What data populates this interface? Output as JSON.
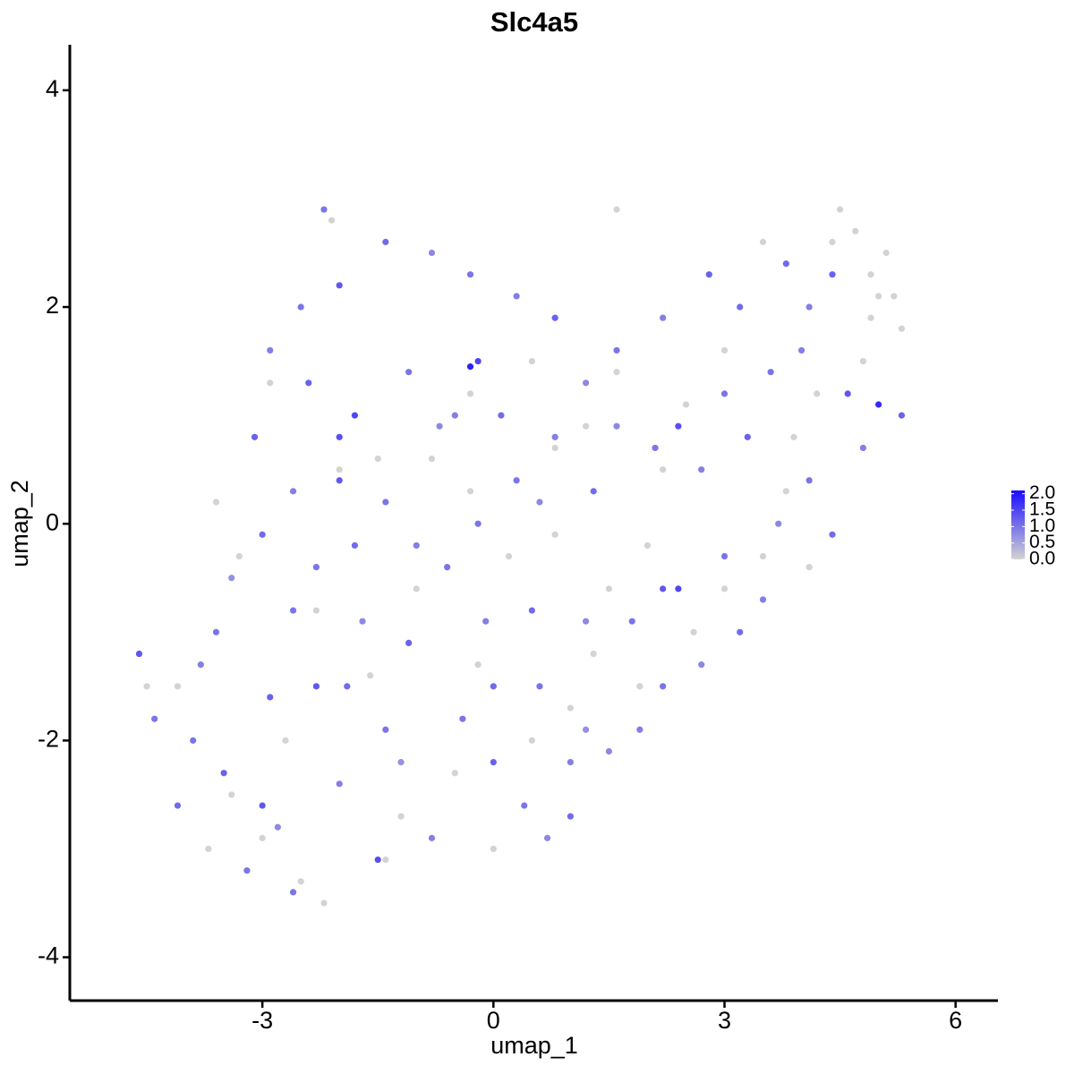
{
  "chart_data": {
    "type": "scatter",
    "title": "Slc4a5",
    "x_label": "umap_1",
    "y_label": "umap_2",
    "xlim": [
      -5.5,
      6.55
    ],
    "ylim": [
      -4.4,
      4.42
    ],
    "xticks": [
      -3,
      0,
      3,
      6
    ],
    "yticks": [
      -4,
      -2,
      0,
      2,
      4
    ],
    "color_low": "#d3d3d3",
    "color_high": "#1a0dff",
    "color_lim": [
      0,
      2.1
    ],
    "color_ticks": [
      {
        "value": 0,
        "label": "0.0"
      },
      {
        "value": 0.5,
        "label": "0.5"
      },
      {
        "value": 1,
        "label": "1.0"
      },
      {
        "value": 1.5,
        "label": "1.5"
      },
      {
        "value": 2,
        "label": "2.0"
      }
    ],
    "x": [
      -4.6,
      -4.5,
      -3.7,
      -3.0,
      -2.5,
      -2.2,
      -1.4,
      -1.2,
      -0.5,
      0.0,
      0.5,
      1.0,
      1.3,
      1.5,
      2.0,
      2.6,
      3.0,
      3.5,
      3.8,
      4.1,
      4.5,
      4.4,
      4.7,
      4.9,
      5.1,
      5.2,
      4.9,
      5.3,
      4.8,
      5.0,
      3.5,
      3.0,
      2.5,
      1.6,
      1.2,
      0.8,
      0.5,
      -0.3,
      -0.8,
      -1.5,
      -2.0,
      -2.9,
      -3.3,
      -2.3,
      -1.6,
      -1.0,
      -0.3,
      0.2,
      0.8,
      1.6,
      -2.1,
      -0.2,
      -2.7,
      -3.4,
      4.2,
      3.9,
      2.2,
      1.9,
      -4.1,
      -3.6,
      -4.6,
      -4.4,
      -4.1,
      -3.8,
      -3.5,
      -3.2,
      -2.8,
      -2.6,
      -2.3,
      -2.0,
      -1.9,
      -1.5,
      -1.2,
      -0.8,
      -0.4,
      0.0,
      0.4,
      0.7,
      1.0,
      1.0,
      0.6,
      1.2,
      1.5,
      1.9,
      2.2,
      2.7,
      3.2,
      3.5,
      3.0,
      2.2,
      1.8,
      1.2,
      0.5,
      -0.1,
      -0.6,
      -1.1,
      -1.7,
      -2.3,
      -3.0,
      -3.4,
      -3.6,
      -3.1,
      -2.6,
      -2.0,
      -1.4,
      -0.7,
      -0.2,
      0.3,
      0.8,
      1.3,
      1.6,
      2.1,
      2.4,
      2.7,
      3.0,
      3.3,
      3.7,
      4.1,
      4.4,
      4.8,
      5.0,
      5.3,
      4.6,
      4.0,
      3.6,
      3.2,
      2.8,
      2.2,
      1.6,
      1.2,
      0.8,
      0.3,
      -0.3,
      -0.8,
      -1.4,
      -2.0,
      -2.5,
      -2.9,
      -2.4,
      -1.8,
      -1.1,
      -0.5,
      0.1,
      0.6,
      -0.2,
      -1.0,
      -1.8,
      -2.6,
      -2.9,
      -3.9,
      -0.3,
      -2.2,
      -3.0,
      -1.4,
      4.4,
      4.1,
      3.8,
      -2.0,
      0.0,
      2.4
    ],
    "series": [
      {
        "values": [
          -1.2,
          -1.5,
          -3.0,
          -2.9,
          -3.3,
          -3.5,
          -3.1,
          -2.7,
          -2.3,
          -3.0,
          -2.0,
          -1.7,
          -1.2,
          -0.6,
          -0.2,
          -1.0,
          -0.6,
          -0.3,
          0.3,
          -0.4,
          2.9,
          2.6,
          2.7,
          2.3,
          2.5,
          2.1,
          1.9,
          1.8,
          1.5,
          2.1,
          2.6,
          1.6,
          1.1,
          1.4,
          0.9,
          0.7,
          1.5,
          1.2,
          0.6,
          0.6,
          0.5,
          1.3,
          -0.3,
          -0.8,
          -1.4,
          -0.6,
          0.3,
          -0.3,
          -0.1,
          2.9,
          2.8,
          -1.3,
          -2.0,
          -2.5,
          1.2,
          0.8,
          0.5,
          -1.5,
          -1.5,
          0.2,
          -1.2,
          -1.8,
          -2.6,
          -1.3,
          -2.3,
          -3.2,
          -2.8,
          -3.4,
          -1.5,
          -2.4,
          -1.5,
          -3.1,
          -2.2,
          -2.9,
          -1.8,
          -2.2,
          -2.6,
          -2.9,
          -2.7,
          -2.2,
          -1.5,
          -1.9,
          -2.1,
          -1.9,
          -1.5,
          -1.3,
          -1.0,
          -0.7,
          -0.3,
          -0.6,
          -0.9,
          -0.9,
          -0.8,
          -0.9,
          -0.4,
          -1.1,
          -0.9,
          -0.4,
          -0.1,
          -0.5,
          -1.0,
          0.8,
          0.3,
          0.8,
          0.2,
          0.9,
          1.5,
          0.4,
          0.8,
          0.3,
          0.9,
          0.7,
          0.9,
          0.5,
          1.2,
          0.8,
          0.0,
          0.4,
          -0.1,
          0.7,
          1.1,
          1.0,
          1.2,
          1.6,
          1.4,
          2.0,
          2.3,
          1.9,
          1.6,
          1.3,
          1.9,
          2.1,
          2.3,
          2.5,
          2.6,
          2.2,
          2.0,
          1.6,
          1.3,
          1.0,
          1.4,
          1.0,
          1.0,
          0.2,
          0.0,
          -0.2,
          -0.2,
          -0.8,
          -1.6,
          -2.0,
          1.45,
          2.9,
          -2.6,
          -1.9,
          2.3,
          2.0,
          2.4,
          0.4,
          -1.5,
          -0.6
        ],
        "expression": [
          0,
          0,
          0,
          0,
          0,
          0,
          0,
          0,
          0,
          0,
          0,
          0,
          0,
          0,
          0,
          0,
          0,
          0,
          0,
          0,
          0,
          0,
          0,
          0,
          0,
          0,
          0,
          0,
          0,
          0,
          0,
          0,
          0,
          0,
          0,
          0,
          0,
          0,
          0,
          0,
          0,
          0,
          0,
          0,
          0,
          0,
          0,
          0,
          0,
          0,
          0,
          0,
          0,
          0,
          0,
          0,
          0,
          0,
          0,
          0,
          1.3,
          1.0,
          1.1,
          0.9,
          1.2,
          1.0,
          0.8,
          1.0,
          1.3,
          0.9,
          1.1,
          1.4,
          0.7,
          0.9,
          1.0,
          1.2,
          1.0,
          0.8,
          1.1,
          0.9,
          1.0,
          0.7,
          0.8,
          0.9,
          1.0,
          0.8,
          1.1,
          0.9,
          1.0,
          1.3,
          1.0,
          0.8,
          1.1,
          0.9,
          1.0,
          1.2,
          0.8,
          1.0,
          1.1,
          0.7,
          1.0,
          1.2,
          0.9,
          1.4,
          1.0,
          0.8,
          1.5,
          1.0,
          0.9,
          1.1,
          0.8,
          1.0,
          1.4,
          0.9,
          1.0,
          1.2,
          0.8,
          1.0,
          1.1,
          0.9,
          1.8,
          1.2,
          1.3,
          0.9,
          1.0,
          1.1,
          1.2,
          0.9,
          1.0,
          0.8,
          1.2,
          0.9,
          1.0,
          0.8,
          1.1,
          1.3,
          1.0,
          0.9,
          1.2,
          1.5,
          1.0,
          0.9,
          1.1,
          0.8,
          1.0,
          0.9,
          1.1,
          1.0,
          1.2,
          1.0,
          1.9,
          1.0,
          1.3,
          1.0,
          1.2,
          0.9,
          1.1,
          1.3,
          1.1,
          1.5
        ]
      }
    ]
  }
}
